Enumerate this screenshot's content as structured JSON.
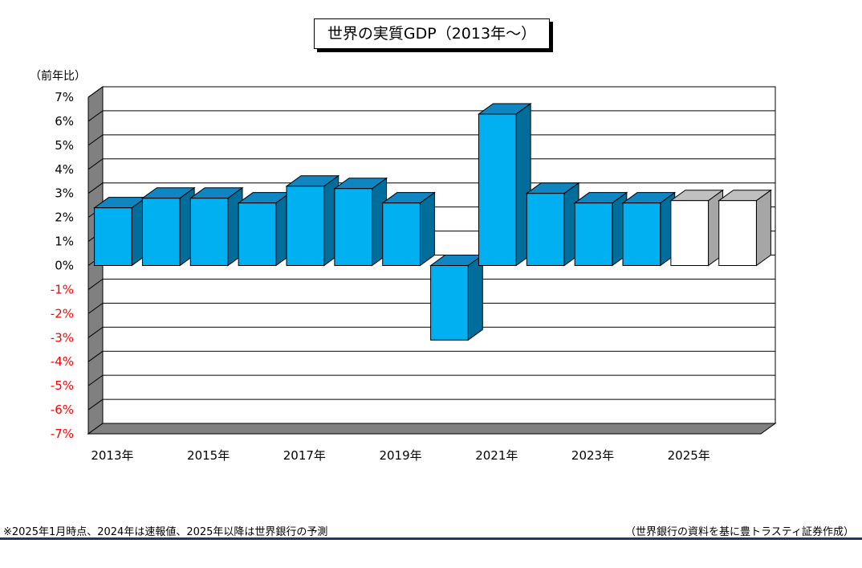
{
  "chart_data": {
    "type": "bar",
    "title": "世界の実質GDP（2013年～）",
    "ylabel": "（前年比）",
    "ylim": [
      -7,
      7
    ],
    "y_ticks": [
      "7%",
      "6%",
      "5%",
      "4%",
      "3%",
      "2%",
      "1%",
      "0%",
      "-1%",
      "-2%",
      "-3%",
      "-4%",
      "-5%",
      "-6%",
      "-7%"
    ],
    "x_tick_labels": [
      "2013年",
      "2015年",
      "2017年",
      "2019年",
      "2021年",
      "2023年",
      "2025年"
    ],
    "categories": [
      "2013",
      "2014",
      "2015",
      "2016",
      "2017",
      "2018",
      "2019",
      "2020",
      "2021",
      "2022",
      "2023",
      "2024",
      "2025",
      "2026"
    ],
    "values": [
      2.4,
      2.8,
      2.8,
      2.6,
      3.3,
      3.2,
      2.6,
      -3.1,
      6.3,
      3.0,
      2.6,
      2.6,
      2.7,
      2.7
    ],
    "forecast_from_index": 12,
    "grid": true,
    "colors": {
      "bar_front": "#00b0f0",
      "bar_top": "#0f86c2",
      "bar_side": "#006e9a",
      "forecast_front": "#ffffff",
      "forecast_top": "#c0c0c0",
      "forecast_side": "#a6a6a6",
      "wall": "#ffffff",
      "floor": "#808080",
      "negative_tick": "#ff0000"
    }
  },
  "footnote_left": "※2025年1月時点、2024年は速報値、2025年以降は世界銀行の予測",
  "footnote_right": "（世界銀行の資料を基に豊トラスティ証券作成）"
}
